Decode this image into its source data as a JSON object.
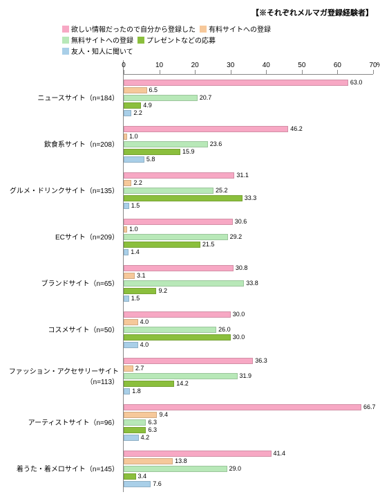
{
  "chart": {
    "type": "bar",
    "header_note": "【※それぞれメルマガ登録経験者】",
    "xmax": 70,
    "xtick_step": 10,
    "pct_suffix": "%",
    "background_color": "#ffffff",
    "tick_color": "#888888",
    "value_fontsize": 9,
    "label_fontsize": 10,
    "series": [
      {
        "key": "s1",
        "label": "欲しい情報だったので自分から登録した",
        "color": "#f7a8c4"
      },
      {
        "key": "s2",
        "label": "有料サイトへの登録",
        "color": "#f6c89a"
      },
      {
        "key": "s3",
        "label": "無料サイトへの登録",
        "color": "#b8e8b8"
      },
      {
        "key": "s4",
        "label": "プレゼントなどの応募",
        "color": "#8bbf3d"
      },
      {
        "key": "s5",
        "label": "友人・知人に聞いて",
        "color": "#a9cfe8"
      }
    ],
    "legend_layout": [
      [
        "s1",
        "s2"
      ],
      [
        "s3",
        "s4"
      ],
      [
        "s5"
      ]
    ],
    "categories": [
      {
        "label": "ニュースサイト（n=184）",
        "values": {
          "s1": 63.0,
          "s2": 6.5,
          "s3": 20.7,
          "s4": 4.9,
          "s5": 2.2
        }
      },
      {
        "label": "飲食系サイト（n=208）",
        "values": {
          "s1": 46.2,
          "s2": 1.0,
          "s3": 23.6,
          "s4": 15.9,
          "s5": 5.8
        }
      },
      {
        "label": "グルメ・ドリンクサイト（n=135）",
        "values": {
          "s1": 31.1,
          "s2": 2.2,
          "s3": 25.2,
          "s4": 33.3,
          "s5": 1.5
        }
      },
      {
        "label": "ECサイト（n=209）",
        "values": {
          "s1": 30.6,
          "s2": 1.0,
          "s3": 29.2,
          "s4": 21.5,
          "s5": 1.4
        }
      },
      {
        "label": "ブランドサイト（n=65）",
        "values": {
          "s1": 30.8,
          "s2": 3.1,
          "s3": 33.8,
          "s4": 9.2,
          "s5": 1.5
        }
      },
      {
        "label": "コスメサイト（n=50）",
        "values": {
          "s1": 30.0,
          "s2": 4.0,
          "s3": 26.0,
          "s4": 30.0,
          "s5": 4.0
        }
      },
      {
        "label": "ファッション・アクセサリーサイト（n=113）",
        "values": {
          "s1": 36.3,
          "s2": 2.7,
          "s3": 31.9,
          "s4": 14.2,
          "s5": 1.8
        }
      },
      {
        "label": "アーティストサイト（n=96）",
        "values": {
          "s1": 66.7,
          "s2": 9.4,
          "s3": 6.3,
          "s4": 6.3,
          "s5": 4.2
        }
      },
      {
        "label": "着うた・着メロサイト（n=145）",
        "values": {
          "s1": 41.4,
          "s2": 13.8,
          "s3": 29.0,
          "s4": 3.4,
          "s5": 7.6
        }
      }
    ]
  }
}
